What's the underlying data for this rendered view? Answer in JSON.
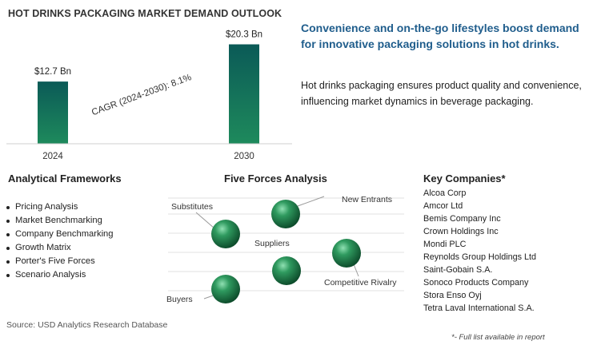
{
  "chart_data": {
    "type": "bar",
    "title": "HOT DRINKS PACKAGING MARKET DEMAND OUTLOOK",
    "categories": [
      "2024",
      "2030"
    ],
    "values": [
      12.7,
      20.3
    ],
    "value_labels": [
      "$12.7 Bn",
      "$20.3 Bn"
    ],
    "annotation": "CAGR (2024-2030):  8.1%",
    "ylim": [
      0,
      21.2
    ],
    "bar_color": "#1e8a5c",
    "bar_color_top": "#0b5a57",
    "grid": false
  },
  "headline": "Convenience and on-the-go lifestyles boost demand for innovative packaging solutions in hot drinks.",
  "description": "Hot drinks packaging ensures product quality and convenience, influencing market dynamics in beverage packaging.",
  "frameworks": {
    "title": "Analytical Frameworks",
    "items": [
      "Pricing Analysis",
      "Market Benchmarking",
      "Company Benchmarking",
      "Growth Matrix",
      "Porter's Five Forces",
      "Scenario Analysis"
    ]
  },
  "five_forces": {
    "title": "Five Forces Analysis",
    "labels": {
      "substitutes": "Substitutes",
      "new_entrants": "New Entrants",
      "suppliers": "Suppliers",
      "competitive_rivalry": "Competitive Rivalry",
      "buyers": "Buyers"
    }
  },
  "companies": {
    "title": "Key Companies*",
    "items": [
      "Alcoa Corp",
      "Amcor Ltd",
      "Bemis Company Inc",
      "Crown Holdings Inc",
      "Mondi PLC",
      "Reynolds Group Holdings Ltd",
      "Saint-Gobain S.A.",
      "Sonoco Products Company",
      "Stora Enso Oyj",
      "Tetra Laval International S.A."
    ]
  },
  "source": "Source: USD Analytics Research Database",
  "footnote": "*- Full list available in report"
}
